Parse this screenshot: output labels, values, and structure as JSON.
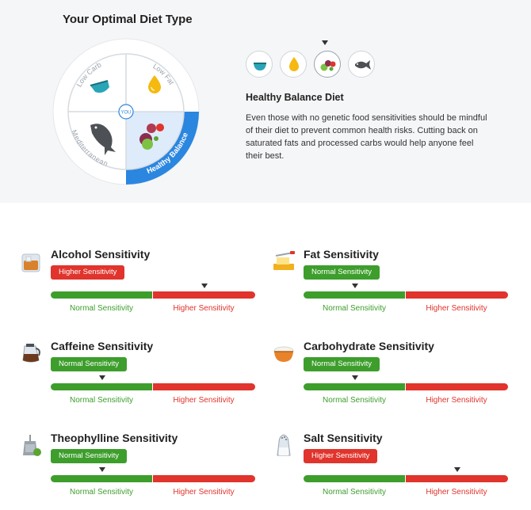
{
  "header": {
    "title": "Your Optimal Diet Type"
  },
  "wheel": {
    "segments": [
      "Low Carb",
      "Low Fat",
      "Mediterranean",
      "Healthy Balance"
    ],
    "selected": "Healthy Balance",
    "center_label": "YOU"
  },
  "diet": {
    "selector_icons": [
      "bowl-icon",
      "oil-drop-icon",
      "vegetables-icon",
      "fish-icon"
    ],
    "selected_index": 2,
    "title": "Healthy Balance Diet",
    "description": "Even those with no genetic food sensitivities should be mindful of their diet to prevent common health risks. Cutting back on saturated fats and processed carbs would help anyone feel their best."
  },
  "scale": {
    "normal_label": "Normal Sensitivity",
    "higher_label": "Higher Sensitivity"
  },
  "sensitivities": [
    {
      "title": "Alcohol Sensitivity",
      "badge": "Higher Sensitivity",
      "level": "higher",
      "position": 0.75,
      "icon": "glass-icon"
    },
    {
      "title": "Fat Sensitivity",
      "badge": "Normal Sensitivity",
      "level": "normal",
      "position": 0.25,
      "icon": "butter-icon"
    },
    {
      "title": "Caffeine Sensitivity",
      "badge": "Normal Sensitivity",
      "level": "normal",
      "position": 0.25,
      "icon": "coffee-pot-icon"
    },
    {
      "title": "Carbohydrate Sensitivity",
      "badge": "Normal Sensitivity",
      "level": "normal",
      "position": 0.25,
      "icon": "rice-bowl-icon"
    },
    {
      "title": "Theophylline Sensitivity",
      "badge": "Normal Sensitivity",
      "level": "normal",
      "position": 0.25,
      "icon": "tea-bag-icon"
    },
    {
      "title": "Salt Sensitivity",
      "badge": "Higher Sensitivity",
      "level": "higher",
      "position": 0.75,
      "icon": "salt-shaker-icon"
    }
  ],
  "colors": {
    "normal": "#3d9e2c",
    "higher": "#e0342c",
    "accent": "#2b86e0"
  }
}
